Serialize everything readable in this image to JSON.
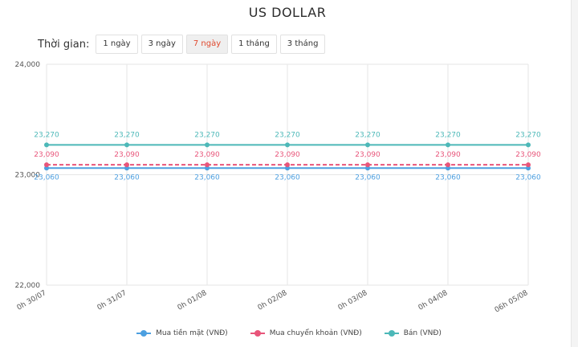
{
  "header": {
    "title": "US DOLLAR"
  },
  "time_filter": {
    "label": "Thời gian:",
    "options": [
      "1 ngày",
      "3 ngày",
      "7 ngày",
      "1 tháng",
      "3 tháng"
    ],
    "selected": "7 ngày"
  },
  "chart_data": {
    "type": "line",
    "title": "US DOLLAR",
    "categories": [
      "0h 30/07",
      "0h 31/07",
      "0h 01/08",
      "0h 02/08",
      "0h 03/08",
      "0h 04/08",
      "06h 05/08"
    ],
    "ylim": [
      22000,
      24000
    ],
    "yticks": [
      22000,
      23000,
      24000
    ],
    "ytick_labels": [
      "22,000",
      "23,000",
      "24,000"
    ],
    "grid": true,
    "legend_position": "bottom",
    "series": [
      {
        "name": "Mua tiền mặt (VNĐ)",
        "color": "#4c9fe0",
        "dashed": false,
        "values": [
          23060,
          23060,
          23060,
          23060,
          23060,
          23060,
          23060
        ],
        "labels": [
          "23,060",
          "23,060",
          "23,060",
          "23,060",
          "23,060",
          "23,060",
          "23,060"
        ]
      },
      {
        "name": "Mua chuyển khoản (VNĐ)",
        "color": "#e8557a",
        "dashed": true,
        "values": [
          23090,
          23090,
          23090,
          23090,
          23090,
          23090,
          23090
        ],
        "labels": [
          "23,090",
          "23,090",
          "23,090",
          "23,090",
          "23,090",
          "23,090",
          "23,090"
        ]
      },
      {
        "name": "Bán (VNĐ)",
        "color": "#4cb8b8",
        "dashed": false,
        "values": [
          23270,
          23270,
          23270,
          23270,
          23270,
          23270,
          23270
        ],
        "labels": [
          "23,270",
          "23,270",
          "23,270",
          "23,270",
          "23,270",
          "23,270",
          "23,270"
        ]
      }
    ]
  }
}
